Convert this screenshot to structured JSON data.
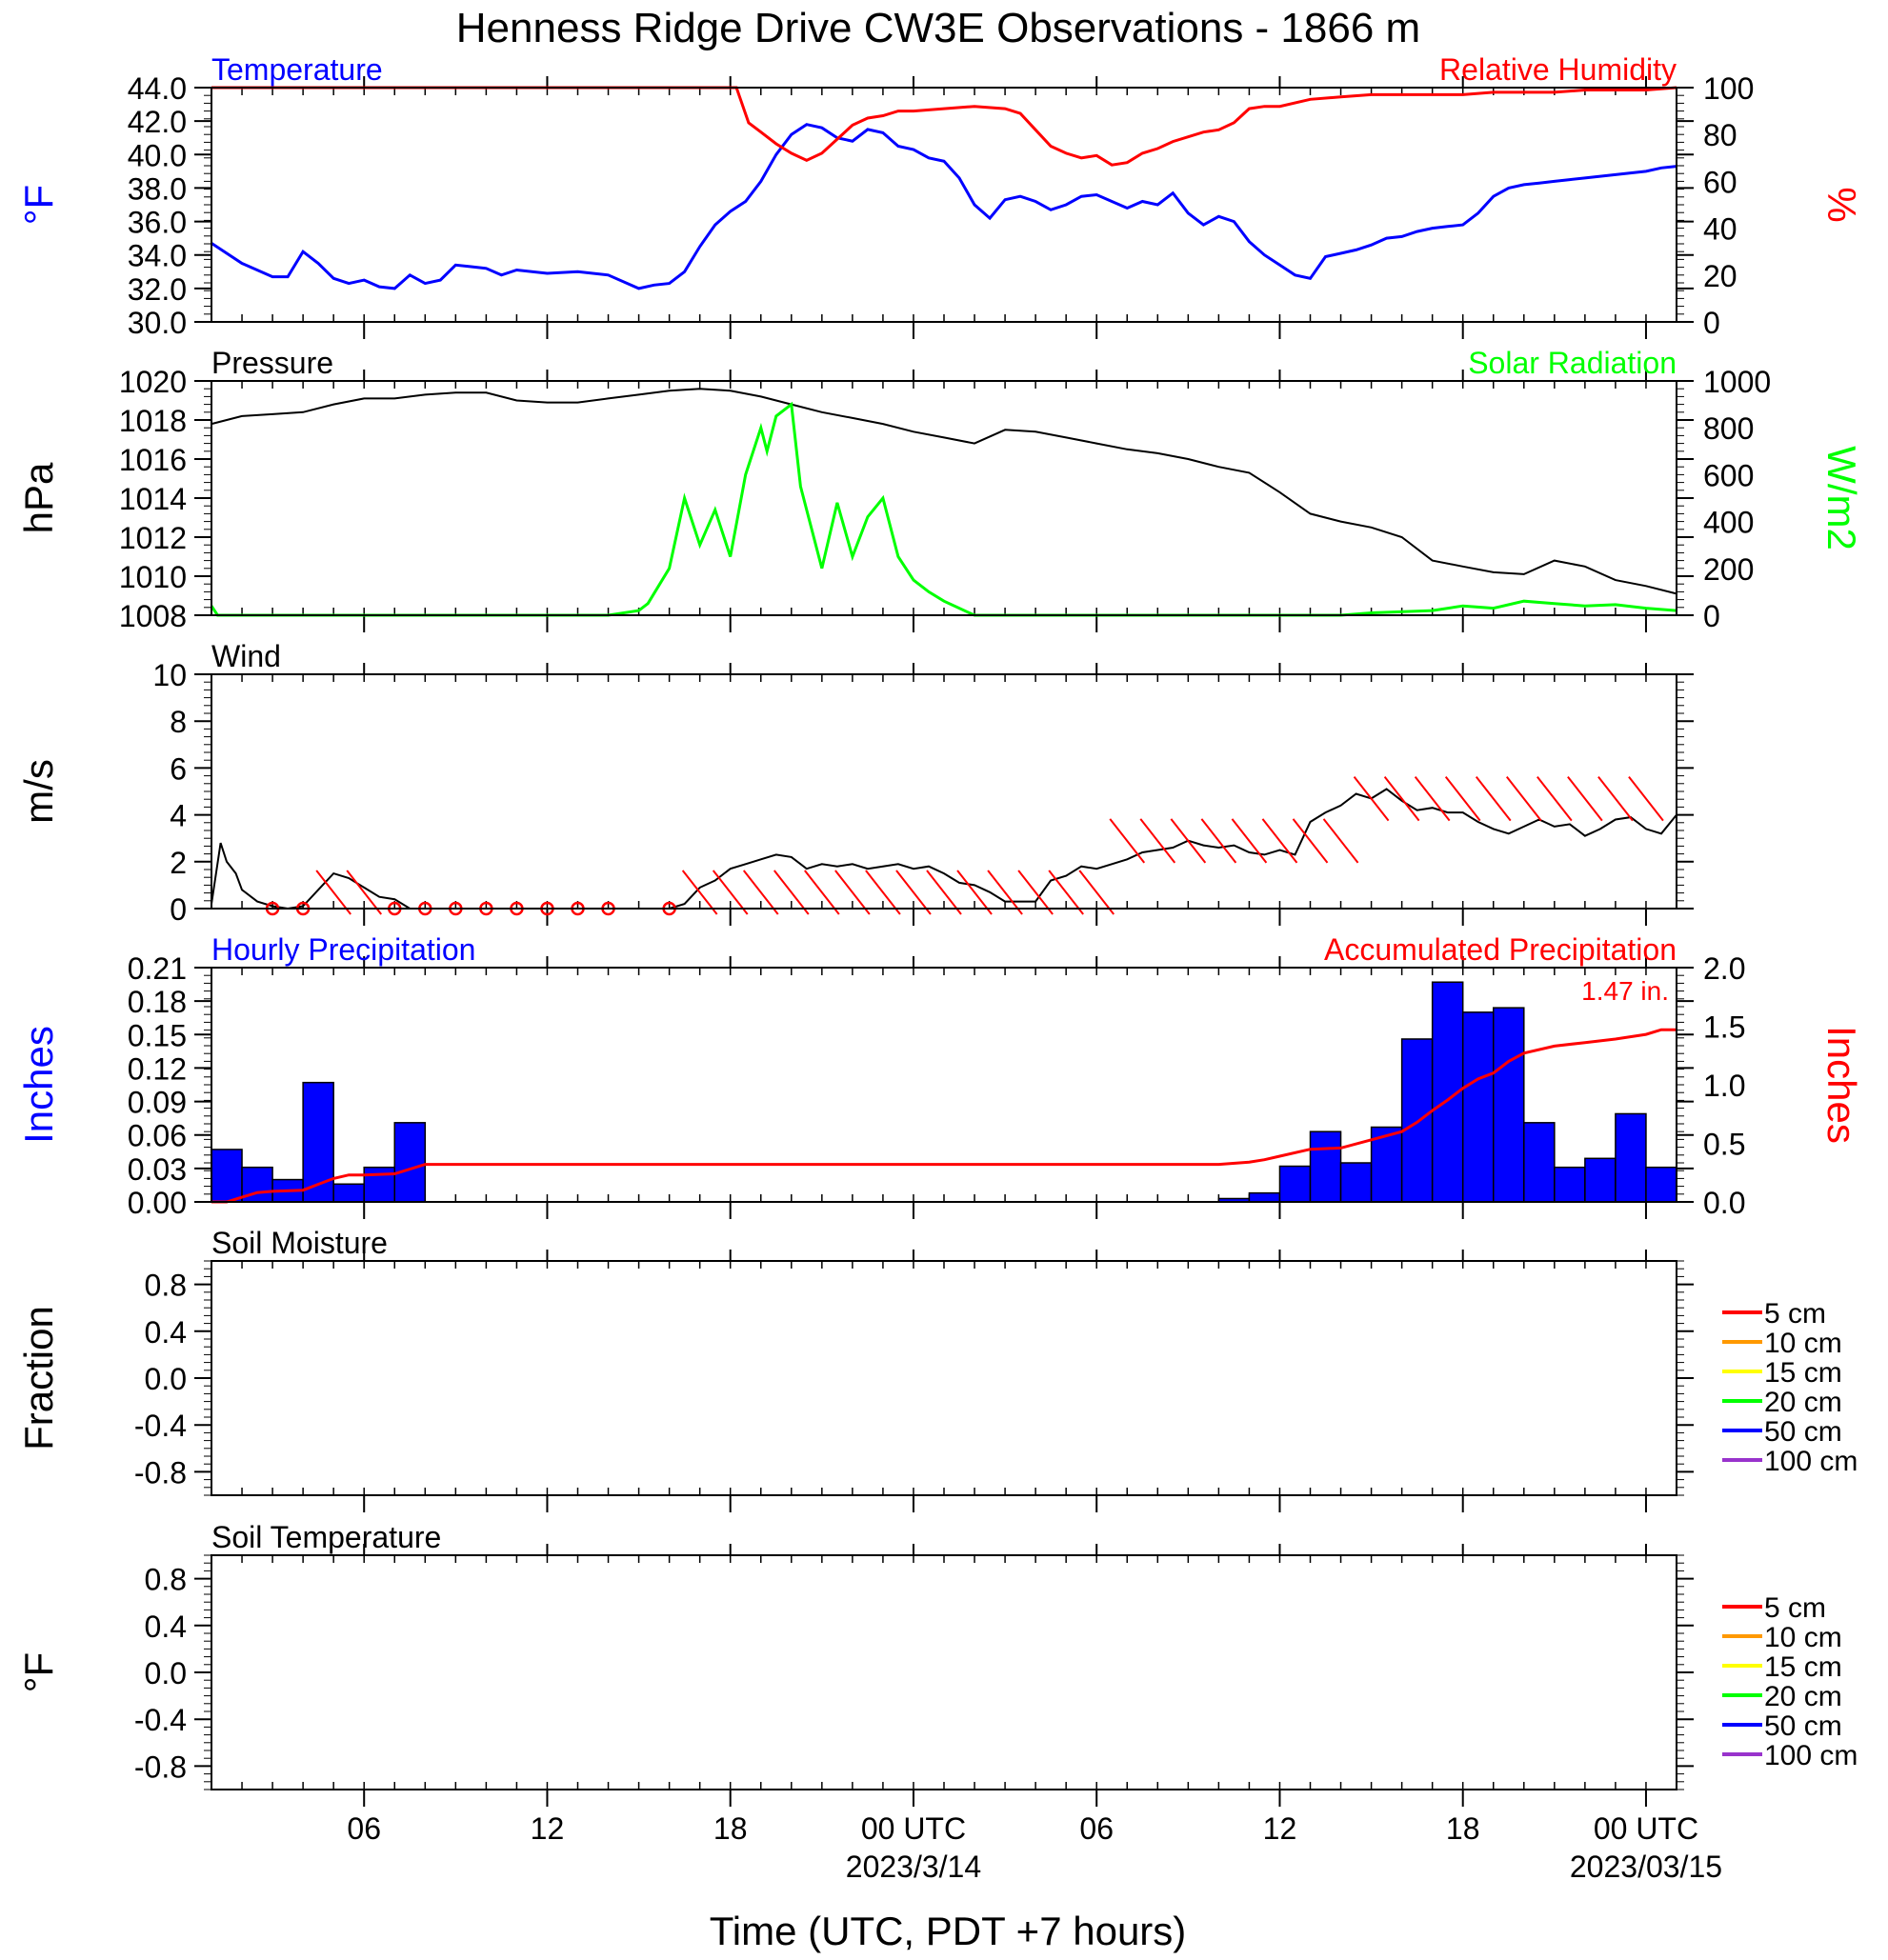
{
  "title": "Henness Ridge Drive CW3E Observations - 1866 m",
  "xaxis": {
    "title": "Time (UTC, PDT +7 hours)",
    "range_hours": [
      0,
      48
    ],
    "ticks": [
      {
        "h": 5,
        "label": "06"
      },
      {
        "h": 11,
        "label": "12"
      },
      {
        "h": 17,
        "label": "18"
      },
      {
        "h": 23,
        "label": "00 UTC",
        "sub": "2023/3/14"
      },
      {
        "h": 29,
        "label": "06"
      },
      {
        "h": 35,
        "label": "12"
      },
      {
        "h": 41,
        "label": "18"
      },
      {
        "h": 47,
        "label": "00 UTC",
        "sub": "2023/03/15"
      }
    ]
  },
  "chart_data": [
    {
      "id": "temp-rh",
      "type": "line",
      "left_title": "Temperature",
      "right_title": "Relative Humidity",
      "left_unit": "°F",
      "right_unit": "%",
      "left_color": "#0000ff",
      "right_color": "#ff0000",
      "ylim": [
        30,
        44
      ],
      "ylim_right": [
        0,
        100
      ],
      "yticks": [
        "30.0",
        "32.0",
        "34.0",
        "36.0",
        "38.0",
        "40.0",
        "42.0",
        "44.0"
      ],
      "yticks_right": [
        "0",
        "20",
        "40",
        "60",
        "80",
        "100"
      ],
      "series": [
        {
          "axis": "left",
          "color": "#0000ff",
          "x": [
            0,
            1,
            2,
            2.5,
            3,
            3.5,
            4,
            4.5,
            5,
            5.5,
            6,
            6.5,
            7,
            7.5,
            8,
            8.5,
            9,
            9.5,
            10,
            11,
            12,
            13,
            14,
            14.5,
            15,
            15.5,
            16,
            16.5,
            17,
            17.5,
            18,
            18.5,
            19,
            19.5,
            20,
            20.5,
            21,
            21.5,
            22,
            22.5,
            23,
            23.5,
            24,
            24.5,
            25,
            25.5,
            26,
            26.5,
            27,
            27.5,
            28,
            28.5,
            29,
            29.5,
            30,
            30.5,
            31,
            31.5,
            32,
            32.5,
            33,
            33.5,
            34,
            34.5,
            35,
            35.5,
            36,
            36.5,
            37,
            37.5,
            38,
            38.5,
            39,
            39.5,
            40,
            40.5,
            41,
            41.5,
            42,
            42.5,
            43,
            43.5,
            44,
            44.5,
            45,
            45.5,
            46,
            46.5,
            47,
            47.5,
            48
          ],
          "y": [
            34.7,
            33.5,
            32.7,
            32.7,
            34.2,
            33.5,
            32.6,
            32.3,
            32.5,
            32.1,
            32,
            32.8,
            32.3,
            32.5,
            33.4,
            33.3,
            33.2,
            32.8,
            33.1,
            32.9,
            33,
            32.8,
            32,
            32.2,
            32.3,
            33,
            34.5,
            35.8,
            36.6,
            37.2,
            38.4,
            40,
            41.2,
            41.8,
            41.6,
            41,
            40.8,
            41.5,
            41.3,
            40.5,
            40.3,
            39.8,
            39.6,
            38.6,
            37,
            36.2,
            37.3,
            37.5,
            37.2,
            36.7,
            37,
            37.5,
            37.6,
            37.2,
            36.8,
            37.2,
            37,
            37.7,
            36.5,
            35.8,
            36.3,
            36,
            34.8,
            34,
            33.4,
            32.8,
            32.6,
            33.9,
            34.1,
            34.3,
            34.6,
            35,
            35.1,
            35.4,
            35.6,
            35.7,
            35.8,
            36.5,
            37.5,
            38,
            38.2,
            38.3,
            38.4,
            38.5,
            38.6,
            38.7,
            38.8,
            38.9,
            39,
            39.2,
            39.3
          ]
        },
        {
          "axis": "right",
          "color": "#ff0000",
          "x": [
            0,
            1,
            2,
            3,
            4,
            5,
            6,
            7,
            8,
            9,
            10,
            11,
            12,
            13,
            14,
            15,
            16,
            17,
            17.2,
            17.6,
            18,
            18.5,
            19,
            19.5,
            20,
            20.5,
            21,
            21.5,
            22,
            22.5,
            23,
            24,
            25,
            26,
            26.5,
            27,
            27.5,
            28,
            28.5,
            29,
            29.5,
            30,
            30.5,
            31,
            31.5,
            32,
            32.5,
            33,
            33.5,
            34,
            34.5,
            35,
            36,
            37,
            38,
            39,
            40,
            41,
            42,
            43,
            44,
            45,
            46,
            47,
            48
          ],
          "y": [
            100,
            100,
            100,
            100,
            100,
            100,
            100,
            100,
            100,
            100,
            100,
            100,
            100,
            100,
            100,
            100,
            100,
            100,
            100,
            85,
            81,
            76,
            72,
            69,
            72,
            78,
            84,
            87,
            88,
            90,
            90,
            91,
            92,
            91,
            89,
            82,
            75,
            72,
            70,
            71,
            67,
            68,
            72,
            74,
            77,
            79,
            81,
            82,
            85,
            91,
            92,
            92,
            95,
            96,
            97,
            97,
            97,
            97,
            98,
            98,
            98,
            99,
            99,
            99,
            100
          ]
        }
      ]
    },
    {
      "id": "pressure-solar",
      "type": "line",
      "left_title": "Pressure",
      "right_title": "Solar Radiation",
      "left_unit": "hPa",
      "right_unit": "W/m2",
      "left_color": "#000000",
      "right_color": "#00ff00",
      "ylim": [
        1008,
        1020
      ],
      "ylim_right": [
        0,
        1000
      ],
      "yticks": [
        "1008",
        "1010",
        "1012",
        "1014",
        "1016",
        "1018",
        "1020"
      ],
      "yticks_right": [
        "0",
        "200",
        "400",
        "600",
        "800",
        "1000"
      ],
      "series": [
        {
          "axis": "left",
          "color": "#000000",
          "x": [
            0,
            0.5,
            1,
            2,
            3,
            4,
            5,
            6,
            7,
            8,
            9,
            10,
            11,
            12,
            13,
            14,
            15,
            16,
            17,
            18,
            19,
            20,
            21,
            22,
            23,
            24,
            25,
            26,
            27,
            28,
            29,
            30,
            31,
            32,
            33,
            34,
            35,
            36,
            37,
            38,
            39,
            40,
            41,
            42,
            43,
            44,
            45,
            46,
            47,
            48
          ],
          "y": [
            1017.8,
            1018,
            1018.2,
            1018.3,
            1018.4,
            1018.8,
            1019.1,
            1019.1,
            1019.3,
            1019.4,
            1019.4,
            1019,
            1018.9,
            1018.9,
            1019.1,
            1019.3,
            1019.5,
            1019.6,
            1019.5,
            1019.2,
            1018.8,
            1018.4,
            1018.1,
            1017.8,
            1017.4,
            1017.1,
            1016.8,
            1017.5,
            1017.4,
            1017.1,
            1016.8,
            1016.5,
            1016.3,
            1016,
            1015.6,
            1015.3,
            1014.3,
            1013.2,
            1012.8,
            1012.5,
            1012,
            1010.8,
            1010.5,
            1010.2,
            1010.1,
            1010.8,
            1010.5,
            1009.8,
            1009.5,
            1009.1
          ]
        },
        {
          "axis": "right",
          "color": "#00ff00",
          "x": [
            0,
            0.2,
            1,
            13,
            14,
            14.3,
            15,
            15.5,
            16,
            16.5,
            17,
            17.5,
            18,
            18.2,
            18.5,
            19,
            19.3,
            20,
            20.5,
            21,
            21.5,
            22,
            22.5,
            23,
            23.5,
            24,
            25,
            26,
            30,
            35,
            37,
            38,
            40,
            41,
            42,
            43,
            44,
            45,
            46,
            47,
            48
          ],
          "y": [
            40,
            0,
            0,
            0,
            20,
            50,
            200,
            500,
            300,
            450,
            250,
            600,
            800,
            700,
            850,
            900,
            550,
            200,
            480,
            250,
            420,
            500,
            250,
            150,
            100,
            60,
            0,
            0,
            0,
            0,
            0,
            10,
            20,
            40,
            30,
            60,
            50,
            40,
            45,
            30,
            20
          ]
        }
      ]
    },
    {
      "id": "wind",
      "type": "line",
      "left_title": "Wind",
      "left_unit": "m/s",
      "ylim": [
        0,
        10
      ],
      "yticks": [
        "0",
        "2",
        "4",
        "6",
        "8",
        "10"
      ],
      "calm_hours": [
        2,
        3,
        6,
        7,
        8,
        9,
        10,
        11,
        12,
        13,
        15
      ],
      "barb_hours": [
        4,
        5,
        16,
        17,
        18,
        19,
        20,
        21,
        22,
        23,
        24,
        25,
        26,
        27,
        28,
        29,
        30,
        31,
        32,
        33,
        34,
        35,
        36,
        37,
        38,
        39,
        40,
        41,
        42,
        43,
        44,
        45,
        46,
        47
      ],
      "series": [
        {
          "axis": "left",
          "color": "#000000",
          "x": [
            0,
            0.3,
            0.5,
            0.8,
            1,
            1.5,
            2,
            2.5,
            3,
            3.5,
            4,
            4.5,
            5,
            5.5,
            6,
            6.5,
            7,
            8,
            9,
            10,
            11,
            12,
            13,
            14,
            14.5,
            15,
            15.5,
            16,
            16.5,
            17,
            17.5,
            18,
            18.5,
            19,
            19.5,
            20,
            20.5,
            21,
            21.5,
            22,
            22.5,
            23,
            23.5,
            24,
            24.5,
            25,
            25.5,
            26,
            26.5,
            27,
            27.5,
            28,
            28.5,
            29,
            29.5,
            30,
            30.5,
            31,
            31.5,
            32,
            32.5,
            33,
            33.5,
            34,
            34.5,
            35,
            35.5,
            36,
            36.5,
            37,
            37.5,
            38,
            38.5,
            39,
            39.5,
            40,
            40.5,
            41,
            41.5,
            42,
            42.5,
            43,
            43.5,
            44,
            44.5,
            45,
            45.5,
            46,
            46.5,
            47,
            47.5,
            48
          ],
          "y": [
            0.2,
            2.8,
            2,
            1.5,
            0.8,
            0.3,
            0.1,
            0,
            0.1,
            0.8,
            1.5,
            1.3,
            0.9,
            0.5,
            0.4,
            0,
            0,
            0,
            0,
            0,
            0,
            0,
            0,
            0,
            0,
            0,
            0.2,
            0.9,
            1.2,
            1.7,
            1.9,
            2.1,
            2.3,
            2.2,
            1.7,
            1.9,
            1.8,
            1.9,
            1.7,
            1.8,
            1.9,
            1.7,
            1.8,
            1.5,
            1.1,
            1,
            0.7,
            0.3,
            0.3,
            0.3,
            1.2,
            1.4,
            1.8,
            1.7,
            1.9,
            2.1,
            2.4,
            2.5,
            2.6,
            2.9,
            2.7,
            2.6,
            2.7,
            2.4,
            2.3,
            2.5,
            2.3,
            3.7,
            4.1,
            4.4,
            4.9,
            4.7,
            5.1,
            4.6,
            4.2,
            4.3,
            4.1,
            4.1,
            3.7,
            3.4,
            3.2,
            3.5,
            3.8,
            3.5,
            3.6,
            3.1,
            3.4,
            3.8,
            3.9,
            3.4,
            3.2,
            4
          ]
        }
      ]
    },
    {
      "id": "precip",
      "type": "bar",
      "left_title": "Hourly Precipitation",
      "right_title": "Accumulated Precipitation",
      "annotation": "1.47 in.",
      "left_unit": "Inches",
      "right_unit": "Inches",
      "left_color": "#0000ff",
      "right_color": "#ff0000",
      "ylim": [
        0,
        0.21
      ],
      "ylim_right": [
        0,
        2.0
      ],
      "yticks": [
        "0.00",
        "0.03",
        "0.06",
        "0.09",
        "0.12",
        "0.15",
        "0.18",
        "0.21"
      ],
      "yticks_right": [
        "0.0",
        "0.5",
        "1.0",
        "1.5",
        "2.0"
      ],
      "bars": {
        "x": [
          0,
          1,
          2,
          3,
          4,
          5,
          6,
          33,
          34,
          35,
          36,
          37,
          38,
          39,
          40,
          41,
          42,
          43,
          44,
          45,
          46,
          47
        ],
        "values": [
          0.047,
          0.031,
          0.02,
          0.107,
          0.016,
          0.031,
          0.071,
          0.003,
          0.008,
          0.032,
          0.063,
          0.035,
          0.067,
          0.146,
          0.197,
          0.17,
          0.174,
          0.071,
          0.031,
          0.039,
          0.079,
          0.031
        ],
        "color": "#0000ff"
      },
      "series": [
        {
          "axis": "right",
          "color": "#ff0000",
          "x": [
            0,
            0.5,
            1,
            1.5,
            2,
            3,
            3.5,
            4,
            4.5,
            5,
            6,
            6.5,
            7,
            32,
            33,
            34,
            34.5,
            35,
            36,
            37,
            38,
            39,
            39.5,
            40,
            40.5,
            41,
            41.5,
            42,
            42.5,
            43,
            44,
            45,
            46,
            47,
            47.5,
            48
          ],
          "y": [
            0,
            0,
            0.04,
            0.08,
            0.09,
            0.1,
            0.15,
            0.2,
            0.23,
            0.23,
            0.24,
            0.28,
            0.32,
            0.32,
            0.32,
            0.34,
            0.36,
            0.39,
            0.45,
            0.46,
            0.53,
            0.6,
            0.68,
            0.78,
            0.87,
            0.97,
            1.05,
            1.1,
            1.2,
            1.27,
            1.33,
            1.36,
            1.39,
            1.43,
            1.47,
            1.47
          ]
        }
      ]
    },
    {
      "id": "soil-moisture",
      "type": "line",
      "left_title": "Soil Moisture",
      "left_unit": "Fraction",
      "ylim": [
        -1,
        1
      ],
      "yticks": [
        "-0.8",
        "-0.4",
        "0.0",
        "0.4",
        "0.8"
      ],
      "yvals": [
        -0.8,
        -0.4,
        0,
        0.4,
        0.8
      ],
      "legend": [
        {
          "label": "5 cm",
          "color": "#ff0000"
        },
        {
          "label": "10 cm",
          "color": "#ff9900"
        },
        {
          "label": "15 cm",
          "color": "#ffff00"
        },
        {
          "label": "20 cm",
          "color": "#00ff00"
        },
        {
          "label": "50 cm",
          "color": "#0000ff"
        },
        {
          "label": "100 cm",
          "color": "#9933cc"
        }
      ],
      "series": []
    },
    {
      "id": "soil-temp",
      "type": "line",
      "left_title": "Soil Temperature",
      "left_unit": "°F",
      "ylim": [
        -1,
        1
      ],
      "yticks": [
        "-0.8",
        "-0.4",
        "0.0",
        "0.4",
        "0.8"
      ],
      "yvals": [
        -0.8,
        -0.4,
        0,
        0.4,
        0.8
      ],
      "legend": [
        {
          "label": "5 cm",
          "color": "#ff0000"
        },
        {
          "label": "10 cm",
          "color": "#ff9900"
        },
        {
          "label": "15 cm",
          "color": "#ffff00"
        },
        {
          "label": "20 cm",
          "color": "#00ff00"
        },
        {
          "label": "50 cm",
          "color": "#0000ff"
        },
        {
          "label": "100 cm",
          "color": "#9933cc"
        }
      ],
      "series": []
    }
  ]
}
